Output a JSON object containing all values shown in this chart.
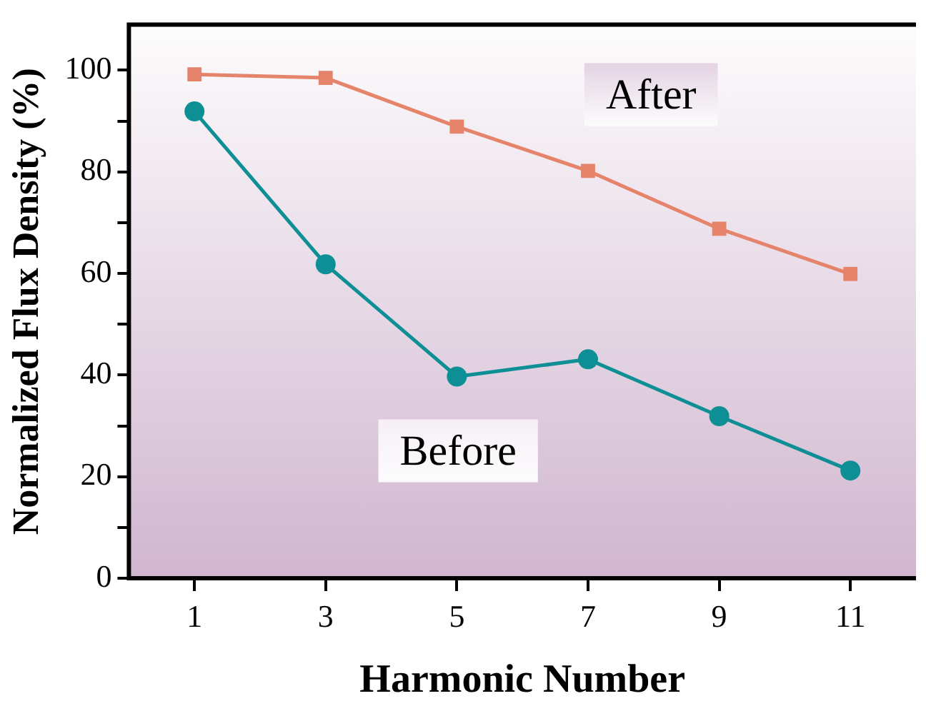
{
  "chart_data": {
    "type": "line",
    "xlabel": "Harmonic Number",
    "ylabel": "Normalized Flux Density (%)",
    "x": [
      1,
      3,
      5,
      7,
      9,
      11
    ],
    "series": [
      {
        "name": "After",
        "color": "#e5836b",
        "values": [
          99.2,
          98.5,
          88.9,
          80.2,
          68.8,
          59.9
        ],
        "marker": "square"
      },
      {
        "name": "Before",
        "color": "#0e8f95",
        "values": [
          91.9,
          61.8,
          39.7,
          43.1,
          31.9,
          21.2
        ],
        "marker": "circle"
      }
    ],
    "xlim": [
      0,
      12
    ],
    "xticks": [
      1,
      3,
      5,
      7,
      9,
      11
    ],
    "ylim": [
      0,
      109
    ],
    "yticks": [
      0,
      {
        "value": 10,
        "label": null
      },
      20,
      {
        "value": 30,
        "label": null
      },
      40,
      {
        "value": 50,
        "label": null
      },
      60,
      {
        "value": 70,
        "label": null
      },
      80,
      {
        "value": 90,
        "label": null
      },
      100
    ],
    "grid": false,
    "legend": false,
    "line_style": "solid"
  }
}
